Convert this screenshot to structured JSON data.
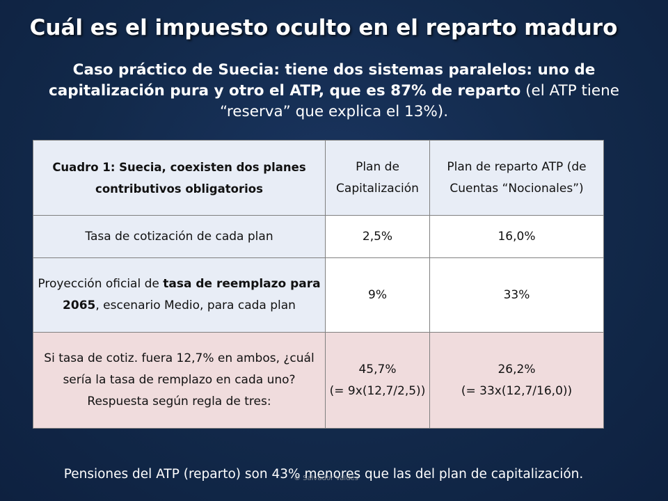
{
  "title": "Cuál es el impuesto oculto en el reparto maduro",
  "subtitle": {
    "bold_part": "Caso práctico de Suecia: tiene dos sistemas paralelos: uno de capitalización pura y otro el ATP, que es 87% de reparto",
    "normal_part": " (el ATP tiene “reserva” que explica el 13%)."
  },
  "table": {
    "header": {
      "col1": "Cuadro 1: Suecia, coexisten dos planes contributivos obligatorios",
      "col2": "Plan de Capitalización",
      "col3": "Plan de reparto ATP (de Cuentas “Nocionales”)"
    },
    "row1": {
      "label": "Tasa de cotización de cada plan",
      "cap": "2,5%",
      "atp": "16,0%"
    },
    "row2": {
      "label_pre": "Proyección oficial de ",
      "label_bold": "tasa de reemplazo para 2065",
      "label_post": ", escenario Medio, para cada plan",
      "cap": "9%",
      "atp": "33%"
    },
    "row3": {
      "label_line1": "Si tasa de cotiz. fuera 12,7% en ambos, ¿cuál sería la tasa de remplazo en cada uno?",
      "label_line2": "Respuesta según regla de tres:",
      "cap_value": "45,7%",
      "cap_formula": "(= 9x(12,7/2,5))",
      "atp_value": "26,2%",
      "atp_formula": "(= 33x(12,7/16,0))"
    }
  },
  "footer": "Pensiones del ATP (reparto) son 43% menores que las del plan de capitalización.",
  "watermark": "© Salvador Valdés",
  "colors": {
    "background": "#12294a",
    "row_blue": "#e8edf6",
    "row_pink": "#f0dcdd"
  }
}
